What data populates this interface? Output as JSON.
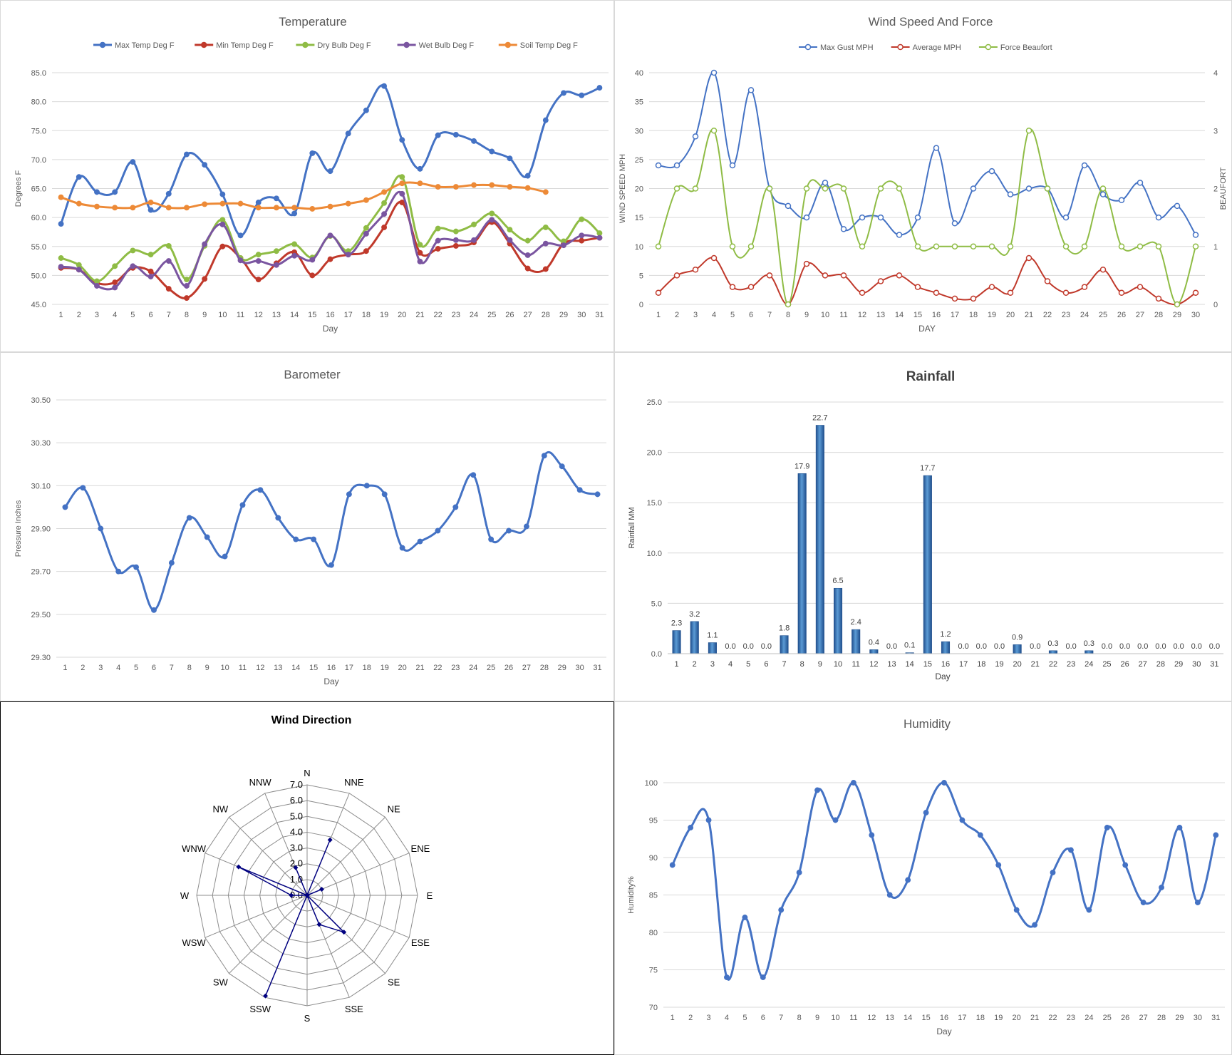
{
  "chart_data": [
    {
      "id": "temp",
      "type": "line",
      "title": "Temperature",
      "xlabel": "Day",
      "ylabel": "Degrees F",
      "ylim": [
        45.0,
        85.0
      ],
      "yticks": [
        "45.0",
        "50.0",
        "55.0",
        "60.0",
        "65.0",
        "70.0",
        "75.0",
        "80.0",
        "85.0"
      ],
      "categories": [
        "1",
        "2",
        "3",
        "4",
        "5",
        "6",
        "7",
        "8",
        "9",
        "10",
        "11",
        "12",
        "13",
        "14",
        "15",
        "16",
        "17",
        "18",
        "19",
        "20",
        "21",
        "22",
        "23",
        "24",
        "25",
        "26",
        "27",
        "28",
        "29",
        "30",
        "31"
      ],
      "legend": "top",
      "series": [
        {
          "name": "Max Temp Deg F",
          "color": "#4472c4",
          "values": [
            58.9,
            67.0,
            64.4,
            64.4,
            69.6,
            61.3,
            64.1,
            70.9,
            69.1,
            64.0,
            56.9,
            62.6,
            63.3,
            60.7,
            71.1,
            68.0,
            74.5,
            78.5,
            82.7,
            73.4,
            68.4,
            74.2,
            74.3,
            73.2,
            71.4,
            70.2,
            67.2,
            76.8,
            81.5,
            81.1,
            82.4
          ]
        },
        {
          "name": "Min Temp Deg F",
          "color": "#c0392b",
          "values": [
            51.3,
            51.0,
            48.7,
            48.8,
            51.3,
            50.7,
            47.7,
            46.1,
            49.4,
            55.0,
            53.0,
            49.3,
            52.1,
            54.0,
            50.0,
            52.8,
            53.6,
            54.2,
            58.3,
            62.6,
            53.9,
            54.6,
            55.1,
            55.7,
            59.2,
            55.5,
            51.2,
            51.1,
            55.5,
            56.0,
            56.5
          ]
        },
        {
          "name": "Dry Bulb Deg F",
          "color": "#8fbc45",
          "values": [
            53.0,
            51.8,
            49.0,
            51.6,
            54.3,
            53.6,
            55.1,
            49.3,
            55.1,
            59.6,
            53.0,
            53.6,
            54.2,
            55.4,
            53.1,
            56.8,
            54.2,
            58.2,
            62.5,
            67.0,
            55.3,
            58.1,
            57.6,
            58.8,
            60.7,
            57.9,
            56.0,
            58.3,
            55.9,
            59.7,
            57.3
          ]
        },
        {
          "name": "Wet Bulb Deg F",
          "color": "#7a55a0",
          "values": [
            51.5,
            51.0,
            48.2,
            47.9,
            51.6,
            49.8,
            52.5,
            48.2,
            55.4,
            58.8,
            52.6,
            52.5,
            51.8,
            53.4,
            52.7,
            56.9,
            53.6,
            57.2,
            60.6,
            64.1,
            52.4,
            56.0,
            56.1,
            56.1,
            59.6,
            56.1,
            53.5,
            55.5,
            55.2,
            56.9,
            56.5
          ]
        },
        {
          "name": "Soil Temp Deg F",
          "color": "#ed8a37",
          "values": [
            63.5,
            62.4,
            61.9,
            61.7,
            61.7,
            62.6,
            61.7,
            61.7,
            62.3,
            62.4,
            62.4,
            61.7,
            61.7,
            61.7,
            61.5,
            61.9,
            62.4,
            63.0,
            64.4,
            65.9,
            65.9,
            65.3,
            65.3,
            65.6,
            65.6,
            65.3,
            65.1,
            64.4,
            null,
            null,
            null
          ]
        }
      ]
    },
    {
      "id": "wind",
      "type": "line",
      "title": "Wind Speed And Force",
      "xlabel": "DAY",
      "ylabel": "WIND SPEED MPH",
      "ylabel_right": "BEAUFORT",
      "ylim": [
        0,
        40
      ],
      "ylim_right": [
        0,
        4
      ],
      "yticks": [
        "0",
        "5",
        "10",
        "15",
        "20",
        "25",
        "30",
        "35",
        "40"
      ],
      "yticks_right": [
        "0",
        "1",
        "2",
        "3",
        "4"
      ],
      "categories": [
        "1",
        "2",
        "3",
        "4",
        "5",
        "6",
        "7",
        "8",
        "9",
        "10",
        "11",
        "12",
        "13",
        "14",
        "15",
        "16",
        "17",
        "18",
        "19",
        "20",
        "21",
        "22",
        "23",
        "24",
        "25",
        "26",
        "27",
        "28",
        "29",
        "30"
      ],
      "legend": "top",
      "series": [
        {
          "name": "Max Gust MPH",
          "color": "#4472c4",
          "axis": "left",
          "values": [
            24,
            24,
            29,
            40,
            24,
            37,
            20,
            17,
            15,
            21,
            13,
            15,
            15,
            12,
            15,
            27,
            14,
            20,
            23,
            19,
            20,
            20,
            15,
            24,
            19,
            18,
            21,
            15,
            17,
            12
          ]
        },
        {
          "name": "Average MPH",
          "color": "#c0392b",
          "axis": "left",
          "values": [
            2,
            5,
            6,
            8,
            3,
            3,
            5,
            0,
            7,
            5,
            5,
            2,
            4,
            5,
            3,
            2,
            1,
            1,
            3,
            2,
            8,
            4,
            2,
            3,
            6,
            2,
            3,
            1,
            0,
            2
          ]
        },
        {
          "name": "Force Beaufort",
          "color": "#8fbc45",
          "axis": "right",
          "values": [
            1,
            2,
            2,
            3,
            1,
            1,
            2,
            0,
            2,
            2,
            2,
            1,
            2,
            2,
            1,
            1,
            1,
            1,
            1,
            1,
            3,
            2,
            1,
            1,
            2,
            1,
            1,
            1,
            0,
            1
          ]
        }
      ]
    },
    {
      "id": "baro",
      "type": "line",
      "title": "Barometer",
      "xlabel": "Day",
      "ylabel": "Pressure Inches",
      "ylim": [
        29.3,
        30.5
      ],
      "yticks": [
        "29.30",
        "29.50",
        "29.70",
        "29.90",
        "30.10",
        "30.30",
        "30.50"
      ],
      "categories": [
        "1",
        "2",
        "3",
        "4",
        "5",
        "6",
        "7",
        "8",
        "9",
        "10",
        "11",
        "12",
        "13",
        "14",
        "15",
        "16",
        "17",
        "18",
        "19",
        "20",
        "21",
        "22",
        "23",
        "24",
        "25",
        "26",
        "27",
        "28",
        "29",
        "30",
        "31"
      ],
      "series": [
        {
          "name": "",
          "color": "#4472c4",
          "values": [
            30.0,
            30.09,
            29.9,
            29.7,
            29.72,
            29.52,
            29.74,
            29.95,
            29.86,
            29.77,
            30.01,
            30.08,
            29.95,
            29.85,
            29.85,
            29.73,
            30.06,
            30.1,
            30.06,
            29.81,
            29.84,
            29.89,
            30.0,
            30.15,
            29.85,
            29.89,
            29.91,
            30.24,
            30.19,
            30.08,
            30.06
          ]
        }
      ]
    },
    {
      "id": "rain",
      "type": "bar",
      "title": "Rainfall",
      "xlabel": "Day",
      "ylabel": "Rainfall MM",
      "ylim": [
        0,
        25
      ],
      "yticks": [
        "0.0",
        "5.0",
        "10.0",
        "15.0",
        "20.0",
        "25.0"
      ],
      "categories": [
        "1",
        "2",
        "3",
        "4",
        "5",
        "6",
        "7",
        "8",
        "9",
        "10",
        "11",
        "12",
        "13",
        "14",
        "15",
        "16",
        "17",
        "18",
        "19",
        "20",
        "21",
        "22",
        "23",
        "24",
        "25",
        "26",
        "27",
        "28",
        "29",
        "30",
        "31"
      ],
      "values": [
        2.3,
        3.2,
        1.1,
        0.0,
        0.0,
        0.0,
        1.8,
        17.9,
        22.7,
        6.5,
        2.4,
        0.4,
        0.0,
        0.1,
        17.7,
        1.2,
        0.0,
        0.0,
        0.0,
        0.9,
        0.0,
        0.3,
        0.0,
        0.3,
        0.0,
        0.0,
        0.0,
        0.0,
        0.0,
        0.0,
        0.0
      ],
      "labels": [
        "2.3",
        "3.2",
        "1.1",
        "0.0",
        "0.0",
        "0.0",
        "1.8",
        "17.9",
        "22.7",
        "6.5",
        "2.4",
        "0.4",
        "0.0",
        "0.1",
        "17.7",
        "1.2",
        "0.0",
        "0.0",
        "0.0",
        "0.9",
        "0.0",
        "0.3",
        "0.0",
        "0.3",
        "0.0",
        "0.0",
        "0.0",
        "0.0",
        "0.0",
        "0.0",
        "0.0"
      ],
      "color": "#2e6db4"
    },
    {
      "id": "dir",
      "type": "radar",
      "title": "Wind Direction",
      "rlim": [
        0,
        7
      ],
      "rticks": [
        "0.0",
        "1.0",
        "2.0",
        "3.0",
        "4.0",
        "5.0",
        "6.0",
        "7.0"
      ],
      "categories": [
        "N",
        "NNE",
        "NE",
        "ENE",
        "E",
        "ESE",
        "SE",
        "SSE",
        "S",
        "SSW",
        "SW",
        "WSW",
        "W",
        "WNW",
        "NW",
        "NNW"
      ],
      "values": [
        0,
        3.8,
        0,
        1,
        0,
        0,
        3.3,
        2,
        0,
        6.9,
        0,
        0,
        1,
        4.7,
        0,
        1.9
      ],
      "color": "#000080"
    },
    {
      "id": "hum",
      "type": "line",
      "title": "Humidity",
      "xlabel": "Day",
      "ylabel": "Humidity%",
      "ylim": [
        70,
        100
      ],
      "yticks": [
        "70",
        "75",
        "80",
        "85",
        "90",
        "95",
        "100"
      ],
      "categories": [
        "1",
        "2",
        "3",
        "4",
        "5",
        "6",
        "7",
        "8",
        "9",
        "10",
        "11",
        "12",
        "13",
        "14",
        "15",
        "16",
        "17",
        "18",
        "19",
        "20",
        "21",
        "22",
        "23",
        "24",
        "25",
        "26",
        "27",
        "28",
        "29",
        "30",
        "31"
      ],
      "series": [
        {
          "name": "",
          "color": "#4472c4",
          "values": [
            89,
            94,
            95,
            74,
            82,
            74,
            83,
            88,
            99,
            95,
            100,
            93,
            85,
            87,
            96,
            100,
            95,
            93,
            89,
            83,
            81,
            88,
            91,
            83,
            94,
            89,
            84,
            86,
            94,
            84,
            93
          ]
        }
      ]
    }
  ]
}
